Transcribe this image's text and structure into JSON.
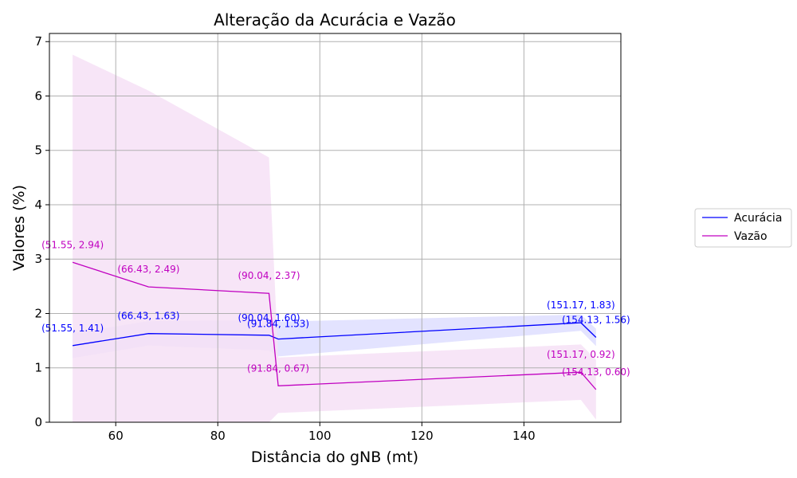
{
  "chart_data": {
    "type": "line",
    "title": "Alteração da Acurácia e Vazão",
    "xlabel": "Distância do gNB (mt)",
    "ylabel": "Valores (%)",
    "xlim": [
      47,
      159
    ],
    "ylim": [
      0,
      7.15
    ],
    "x_ticks": [
      60,
      80,
      100,
      120,
      140
    ],
    "y_ticks": [
      0,
      1,
      2,
      3,
      4,
      5,
      6,
      7
    ],
    "grid": true,
    "legend_position": "right",
    "series": [
      {
        "name": "Acurácia",
        "color": "#0000ff",
        "band_color": "#e0e0ff",
        "x": [
          51.55,
          66.43,
          90.04,
          91.84,
          151.17,
          154.13
        ],
        "y": [
          1.41,
          1.63,
          1.6,
          1.53,
          1.83,
          1.56
        ],
        "band_upper": [
          1.64,
          1.86,
          1.88,
          1.85,
          1.98,
          1.72
        ],
        "band_lower": [
          1.18,
          1.41,
          1.32,
          1.21,
          1.68,
          1.4
        ],
        "labels": [
          "(51.55, 1.41)",
          "(66.43, 1.63)",
          "(90.04, 1.60)",
          "(91.84, 1.53)",
          "(151.17, 1.83)",
          "(154.13, 1.56)"
        ]
      },
      {
        "name": "Vazão",
        "color": "#c000c0",
        "band_color": "#f6e0f6",
        "x": [
          51.55,
          66.43,
          90.04,
          91.84,
          151.17,
          154.13
        ],
        "y": [
          2.94,
          2.49,
          2.37,
          0.67,
          0.92,
          0.6
        ],
        "band_upper": [
          6.76,
          6.1,
          4.87,
          1.19,
          1.43,
          1.15
        ],
        "band_lower": [
          0,
          0,
          0,
          0.17,
          0.41,
          0.05
        ],
        "labels": [
          "(51.55, 2.94)",
          "(66.43, 2.49)",
          "(90.04, 2.37)",
          "(91.84, 0.67)",
          "(151.17, 0.92)",
          "(154.13, 0.60)"
        ]
      }
    ]
  }
}
